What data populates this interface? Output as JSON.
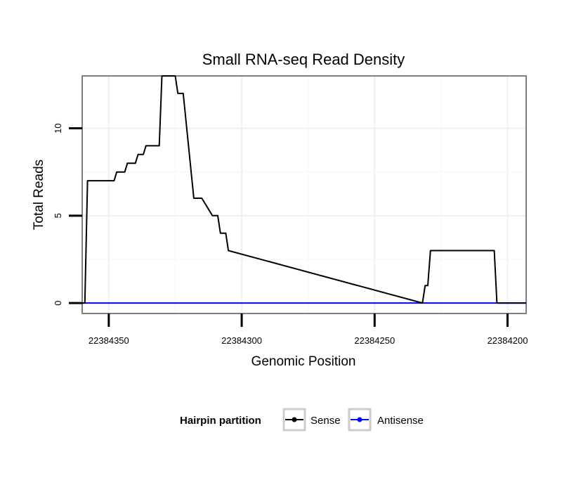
{
  "chart_data": {
    "type": "line",
    "title": "Small RNA-seq Read Density",
    "xlabel": "Genomic Position",
    "ylabel": "Total Reads",
    "xlim": [
      22384360,
      22384193
    ],
    "ylim": [
      -0.6,
      13.0
    ],
    "x_reversed": true,
    "x_ticks": [
      22384350,
      22384300,
      22384250,
      22384200
    ],
    "x_tick_labels": [
      "22384350",
      "22384300",
      "22384250",
      "22384200"
    ],
    "y_ticks": [
      0,
      5,
      10
    ],
    "y_tick_labels": [
      "0",
      "5",
      "10"
    ],
    "grid": true,
    "legend": {
      "title": "Hairpin partition",
      "position": "bottom",
      "entries": [
        {
          "name": "Sense",
          "color": "#000000"
        },
        {
          "name": "Antisense",
          "color": "#0000ff"
        }
      ]
    },
    "series": [
      {
        "name": "Sense",
        "color": "#000000",
        "x": [
          22384360,
          22384359,
          22384358,
          22384348,
          22384347,
          22384344,
          22384343,
          22384340,
          22384339,
          22384337,
          22384336,
          22384331,
          22384330,
          22384329,
          22384328,
          22384325,
          22384324,
          22384323,
          22384322,
          22384318,
          22384317,
          22384316,
          22384315,
          22384311,
          22384310,
          22384309,
          22384308,
          22384307,
          22384306,
          22384305,
          22384232,
          22384231,
          22384230,
          22384229,
          22384205,
          22384204,
          22384203,
          22384193
        ],
        "y": [
          0,
          0,
          7,
          7,
          7.5,
          7.5,
          8,
          8,
          8.5,
          8.5,
          9,
          9,
          13,
          13,
          13,
          13,
          12,
          12,
          12,
          6,
          6,
          6,
          6,
          5,
          5,
          5,
          4,
          4,
          4,
          3,
          0,
          1,
          1,
          3,
          3,
          0,
          0,
          0
        ]
      },
      {
        "name": "Antisense",
        "color": "#0000ff",
        "x": [
          22384360,
          22384305,
          22384230,
          22384205,
          22384193
        ],
        "y": [
          0,
          0,
          0,
          0,
          0
        ]
      }
    ]
  }
}
